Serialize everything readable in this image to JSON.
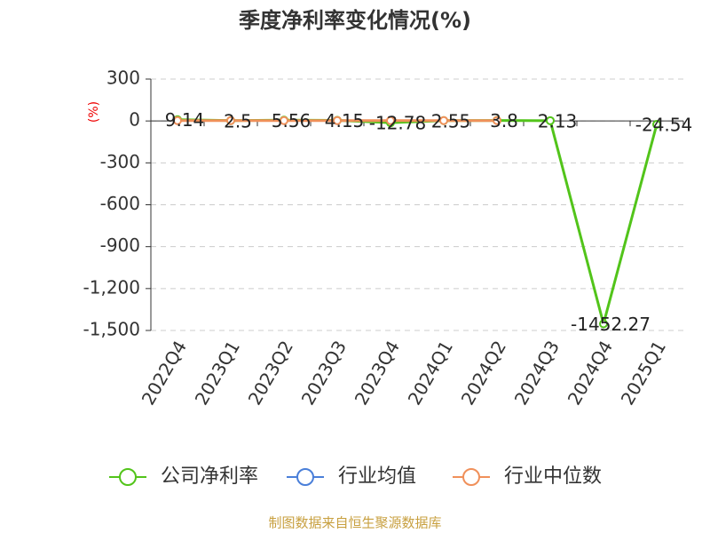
{
  "chart_data": {
    "type": "line",
    "title": "季度净利率变化情况(%)",
    "y_label": "(%)",
    "categories": [
      "2022Q4",
      "2023Q1",
      "2023Q2",
      "2023Q3",
      "2023Q4",
      "2024Q1",
      "2024Q2",
      "2024Q3",
      "2024Q4",
      "2025Q1"
    ],
    "series": [
      {
        "name": "公司净利率",
        "color": "#52c41a",
        "values": [
          9.14,
          2.5,
          5.56,
          4.15,
          -12.78,
          2.55,
          3.8,
          2.13,
          -1452.27,
          -24.54
        ],
        "show_labels": true
      },
      {
        "name": "行业均值",
        "color": "#4a7fd9",
        "values": [
          null,
          null,
          null,
          null,
          null,
          null,
          null,
          null,
          null,
          null
        ],
        "show_labels": false
      },
      {
        "name": "行业中位数",
        "color": "#f0905a",
        "values": [
          3,
          3,
          3,
          3,
          3,
          3,
          3,
          null,
          null,
          null
        ],
        "show_labels": false
      }
    ],
    "ylim": [
      -1500,
      300
    ],
    "yticks": [
      300,
      0,
      -300,
      -600,
      -900,
      {
        "value": -1200,
        "label": "-1,200"
      },
      {
        "value": -1500,
        "label": "-1,500"
      }
    ],
    "grid": true,
    "footer": "制图数据来自恒生聚源数据库"
  }
}
